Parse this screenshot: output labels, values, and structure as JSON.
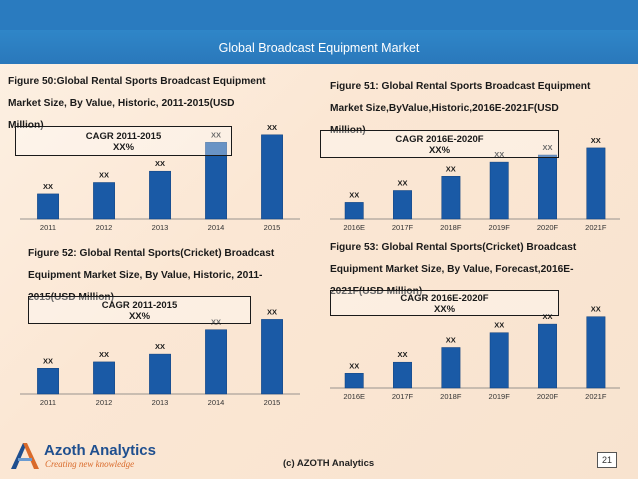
{
  "header": {
    "title": "Global Broadcast Equipment Market"
  },
  "colors": {
    "bar": "#1a5aa6",
    "bar_edge": "#0d3f7c",
    "header": "#2a7bbf"
  },
  "figures": [
    {
      "title_lines": [
        "Figure 50:Global Rental Sports Broadcast Equipment",
        "Market  Size,  By  Value,  Historic,        2011-2015(USD",
        "Million)"
      ],
      "cagr_lines": [
        "CAGR 2011-2015",
        "XX%"
      ]
    },
    {
      "title_lines": [
        "Figure 51: Global Rental Sports Broadcast Equipment",
        "Market               Size,ByValue,Historic,2016E-2021F(USD",
        "Million)"
      ],
      "cagr_lines": [
        "CAGR 2016E-2020F",
        "XX%"
      ]
    },
    {
      "title_lines": [
        "Figure  52:  Global  Rental  Sports(Cricket)  Broadcast",
        "Equipment  Market  Size,  By  Value,  Historic,     2011-",
        "2015(USD Million)"
      ],
      "cagr_lines": [
        "CAGR 2011-2015",
        "XX%"
      ]
    },
    {
      "title_lines": [
        "Figure  53:  Global  Rental  Sports(Cricket)  Broadcast",
        "Equipment  Market  Size,  By  Value,  Forecast,2016E-",
        "2021F(USD Million)"
      ],
      "cagr_lines": [
        "CAGR 2016E-2020F",
        "XX%"
      ]
    }
  ],
  "chart_data": [
    {
      "type": "bar",
      "categories": [
        "2011",
        "2012",
        "2013",
        "2014",
        "2015"
      ],
      "values": [
        20,
        29,
        38,
        61,
        67
      ],
      "data_labels": [
        "XX",
        "XX",
        "XX",
        "XX",
        "XX"
      ],
      "ylim": [
        0,
        70
      ]
    },
    {
      "type": "bar",
      "categories": [
        "2016E",
        "2017F",
        "2018F",
        "2019F",
        "2020F",
        "2021F"
      ],
      "values": [
        14,
        24,
        36,
        48,
        54,
        60
      ],
      "data_labels": [
        "XX",
        "XX",
        "XX",
        "XX",
        "XX",
        "XX"
      ],
      "ylim": [
        0,
        70
      ]
    },
    {
      "type": "bar",
      "categories": [
        "2011",
        "2012",
        "2013",
        "2014",
        "2015"
      ],
      "values": [
        20,
        25,
        31,
        50,
        58
      ],
      "data_labels": [
        "XX",
        "XX",
        "XX",
        "XX",
        "XX"
      ],
      "ylim": [
        0,
        70
      ]
    },
    {
      "type": "bar",
      "categories": [
        "2016E",
        "2017F",
        "2018F",
        "2019F",
        "2020F",
        "2021F"
      ],
      "values": [
        12,
        21,
        33,
        45,
        52,
        58
      ],
      "data_labels": [
        "XX",
        "XX",
        "XX",
        "XX",
        "XX",
        "XX"
      ],
      "ylim": [
        0,
        70
      ]
    }
  ],
  "footer": {
    "copyright": "(c) AZOTH Analytics",
    "page": "21"
  },
  "logo": {
    "name": "Azoth Analytics",
    "tagline": "Creating new knowledge"
  }
}
